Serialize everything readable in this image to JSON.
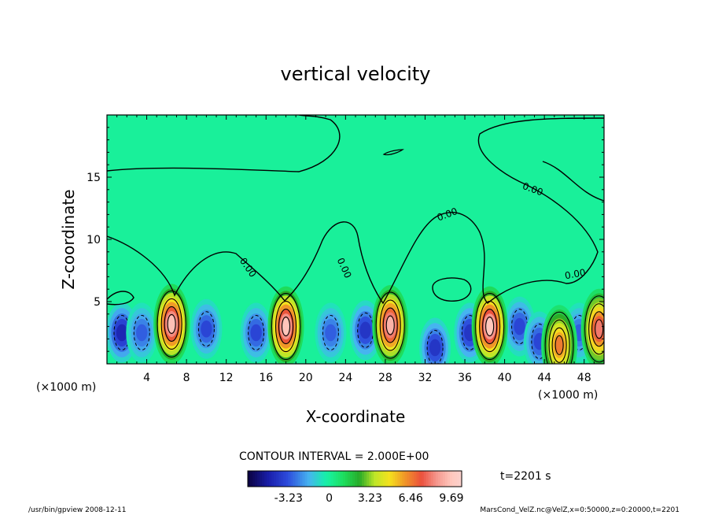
{
  "chart_data": {
    "type": "heatmap",
    "title": "vertical velocity",
    "xlabel": "X-coordinate",
    "ylabel": "Z-coordinate",
    "x_unit": "(×1000 m)",
    "x_unit_right": "(×1000 m)",
    "x_ticks": [
      4,
      8,
      12,
      16,
      20,
      24,
      28,
      32,
      36,
      40,
      44,
      48
    ],
    "y_ticks": [
      5,
      10,
      15
    ],
    "xlim": [
      0,
      50
    ],
    "ylim": [
      0,
      20
    ],
    "contour_interval_text": "CONTOUR INTERVAL = 2.000E+00",
    "time_text": "t=2201 s",
    "colorbar": {
      "tick_labels": [
        "-3.23",
        "0",
        "3.23",
        "6.46",
        "9.69"
      ],
      "tick_values": [
        -3.23,
        0,
        3.23,
        6.46,
        9.69
      ],
      "range": [
        -6.46,
        10.5
      ]
    },
    "contour_labels": [
      "0.00",
      "0.00",
      "0.00",
      "0.00",
      "0.00"
    ],
    "updrafts": [
      {
        "x": 6.5,
        "z": 3.2,
        "peak": 9.5
      },
      {
        "x": 18.0,
        "z": 3.0,
        "peak": 9.6
      },
      {
        "x": 28.5,
        "z": 3.1,
        "peak": 9.2
      },
      {
        "x": 38.5,
        "z": 3.0,
        "peak": 9.7
      },
      {
        "x": 45.5,
        "z": 1.5,
        "peak": 6.5
      },
      {
        "x": 49.5,
        "z": 2.8,
        "peak": 8.0
      }
    ],
    "downdrafts": [
      {
        "x": 1.5,
        "z": 2.5,
        "peak": -4.5
      },
      {
        "x": 3.5,
        "z": 2.5,
        "peak": -3.0
      },
      {
        "x": 10.0,
        "z": 2.8,
        "peak": -3.5
      },
      {
        "x": 15.0,
        "z": 2.5,
        "peak": -3.5
      },
      {
        "x": 22.5,
        "z": 2.5,
        "peak": -3.0
      },
      {
        "x": 26.0,
        "z": 2.7,
        "peak": -4.0
      },
      {
        "x": 33.0,
        "z": 1.3,
        "peak": -4.0
      },
      {
        "x": 36.5,
        "z": 2.5,
        "peak": -4.0
      },
      {
        "x": 41.5,
        "z": 3.0,
        "peak": -3.5
      },
      {
        "x": 43.5,
        "z": 1.8,
        "peak": -3.5
      },
      {
        "x": 47.5,
        "z": 2.5,
        "peak": -3.0
      }
    ]
  },
  "footer": {
    "left": "/usr/bin/gpview  2008-12-11",
    "right": "MarsCond_VelZ.nc@VelZ,x=0:50000,z=0:20000,t=2201"
  }
}
